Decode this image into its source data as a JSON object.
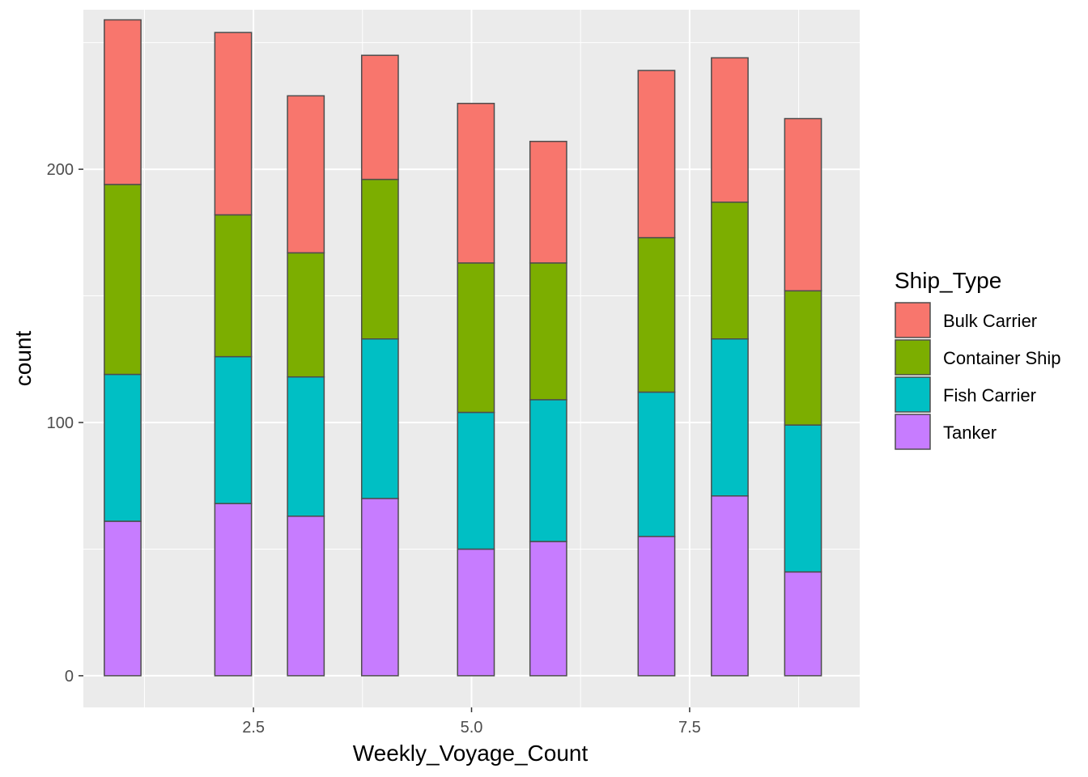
{
  "chart_data": {
    "type": "bar",
    "stacked": true,
    "xlabel": "Weekly_Voyage_Count",
    "ylabel": "count",
    "xlim": [
      0.55,
      9.45
    ],
    "ylim": [
      -12.5,
      263
    ],
    "x_ticks": [
      2.5,
      5.0,
      7.5
    ],
    "x_tick_labels": [
      "2.5",
      "5.0",
      "7.5"
    ],
    "x_minor_ticks": [
      1.25,
      3.75,
      6.25,
      8.75
    ],
    "y_ticks": [
      0,
      100,
      200
    ],
    "y_tick_labels": [
      "0",
      "100",
      "200"
    ],
    "y_minor_ticks": [
      50,
      150,
      250
    ],
    "grid": true,
    "bar_width": 0.42,
    "x": [
      1,
      2.267,
      3.1,
      3.95,
      5.05,
      5.88,
      7.12,
      7.96,
      8.8
    ],
    "series": [
      {
        "name": "Tanker",
        "color": "#C77CFF",
        "values": [
          61,
          68,
          63,
          70,
          50,
          53,
          55,
          71,
          41
        ]
      },
      {
        "name": "Fish Carrier",
        "color": "#00BFC4",
        "values": [
          58,
          58,
          55,
          63,
          54,
          56,
          57,
          62,
          58
        ]
      },
      {
        "name": "Container Ship",
        "color": "#7CAE00",
        "values": [
          75,
          56,
          49,
          63,
          59,
          54,
          61,
          54,
          53
        ]
      },
      {
        "name": "Bulk Carrier",
        "color": "#F8766D",
        "values": [
          65,
          72,
          62,
          49,
          63,
          48,
          66,
          57,
          68
        ]
      }
    ],
    "legend": {
      "title": "Ship_Type",
      "position": "right",
      "entries": [
        "Bulk Carrier",
        "Container Ship",
        "Fish Carrier",
        "Tanker"
      ]
    },
    "colors": {
      "panel_background": "#EBEBEB",
      "grid": "#FFFFFF",
      "bar_outline": "#4D4D4D"
    }
  }
}
